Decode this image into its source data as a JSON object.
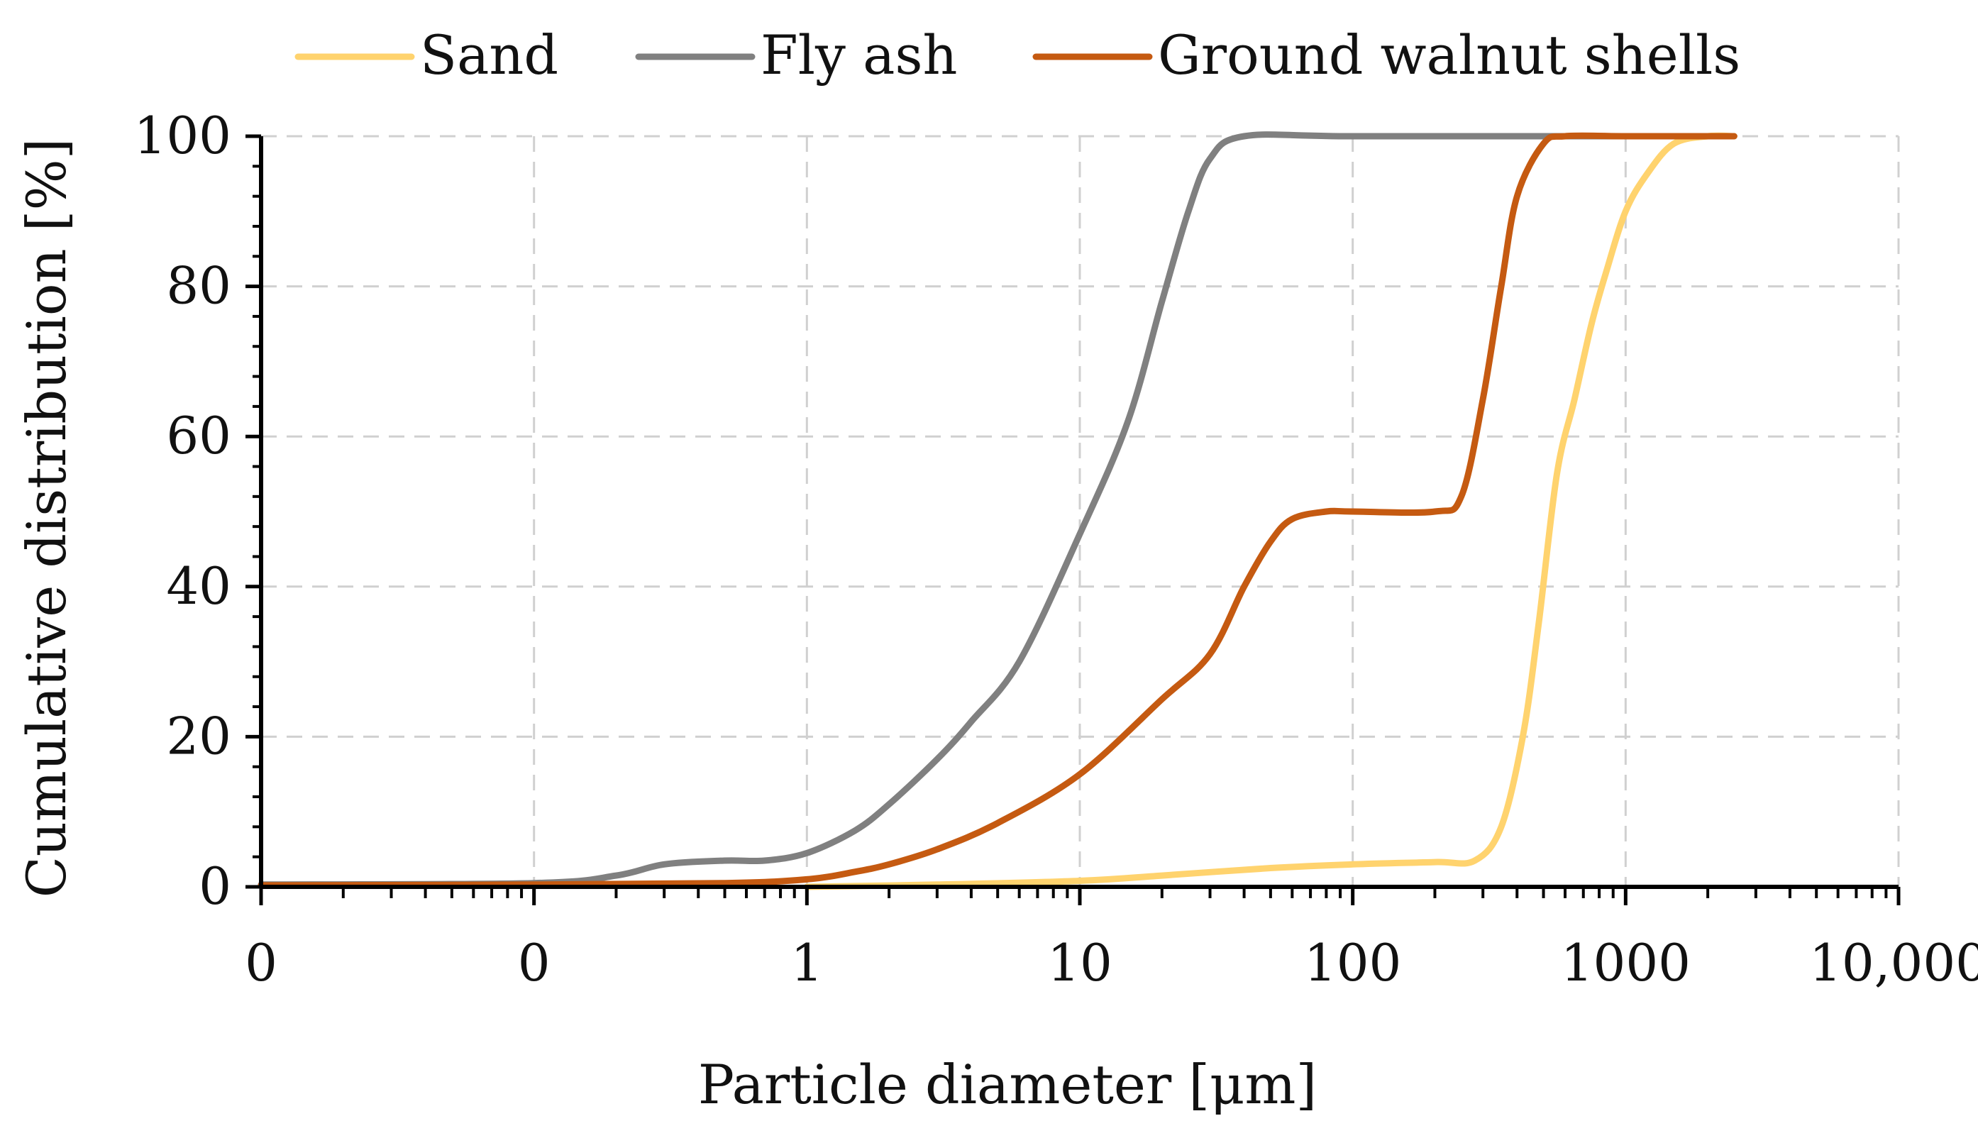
{
  "chart_data": {
    "type": "line",
    "xscale": "log",
    "xlabel": "Particle diameter [μm]",
    "ylabel": "Cumulative distribution [%]",
    "xlim": [
      0.01,
      10000
    ],
    "ylim": [
      0,
      100
    ],
    "grid": true,
    "legend_position": "top",
    "x_ticks": [
      0.01,
      0.1,
      1,
      10,
      100,
      1000,
      10000
    ],
    "x_tick_labels": [
      "0",
      "0",
      "1",
      "10",
      "100",
      "1000",
      "10,000"
    ],
    "y_ticks": [
      0,
      20,
      40,
      60,
      80,
      100
    ],
    "y_tick_labels": [
      "0",
      "20",
      "40",
      "60",
      "80",
      "100"
    ],
    "series": [
      {
        "name": "Sand",
        "color": "#FFD36E",
        "points": [
          [
            1,
            0
          ],
          [
            3,
            0.3
          ],
          [
            10,
            0.8
          ],
          [
            20,
            1.5
          ],
          [
            50,
            2.5
          ],
          [
            100,
            3
          ],
          [
            200,
            3.3
          ],
          [
            280,
            3.5
          ],
          [
            350,
            8
          ],
          [
            420,
            20
          ],
          [
            480,
            35
          ],
          [
            560,
            55
          ],
          [
            650,
            65
          ],
          [
            750,
            75
          ],
          [
            850,
            82
          ],
          [
            1000,
            90
          ],
          [
            1200,
            95
          ],
          [
            1500,
            99
          ],
          [
            2000,
            100
          ],
          [
            2500,
            100
          ]
        ]
      },
      {
        "name": "Fly ash",
        "color": "#808080",
        "points": [
          [
            0.01,
            0.3
          ],
          [
            0.1,
            0.5
          ],
          [
            0.2,
            1.5
          ],
          [
            0.3,
            3
          ],
          [
            0.5,
            3.5
          ],
          [
            0.7,
            3.5
          ],
          [
            1,
            4.5
          ],
          [
            1.5,
            7.5
          ],
          [
            2,
            11
          ],
          [
            3,
            17
          ],
          [
            4,
            22
          ],
          [
            6,
            30
          ],
          [
            10,
            47
          ],
          [
            15,
            62
          ],
          [
            20,
            78
          ],
          [
            25,
            90
          ],
          [
            30,
            97
          ],
          [
            40,
            100
          ],
          [
            100,
            100
          ],
          [
            1000,
            100
          ],
          [
            1500,
            100
          ]
        ]
      },
      {
        "name": "Ground walnut shells",
        "color": "#C55A11",
        "points": [
          [
            0.01,
            0.2
          ],
          [
            0.1,
            0.3
          ],
          [
            0.5,
            0.5
          ],
          [
            1,
            1
          ],
          [
            1.5,
            2
          ],
          [
            2,
            3
          ],
          [
            3,
            5
          ],
          [
            5,
            8.5
          ],
          [
            10,
            15
          ],
          [
            20,
            25
          ],
          [
            30,
            31
          ],
          [
            40,
            40
          ],
          [
            50,
            46
          ],
          [
            60,
            49
          ],
          [
            80,
            50
          ],
          [
            100,
            50
          ],
          [
            200,
            50
          ],
          [
            250,
            52
          ],
          [
            300,
            65
          ],
          [
            350,
            80
          ],
          [
            400,
            92
          ],
          [
            500,
            99
          ],
          [
            600,
            100
          ],
          [
            1000,
            100
          ],
          [
            2500,
            100
          ]
        ]
      }
    ]
  }
}
